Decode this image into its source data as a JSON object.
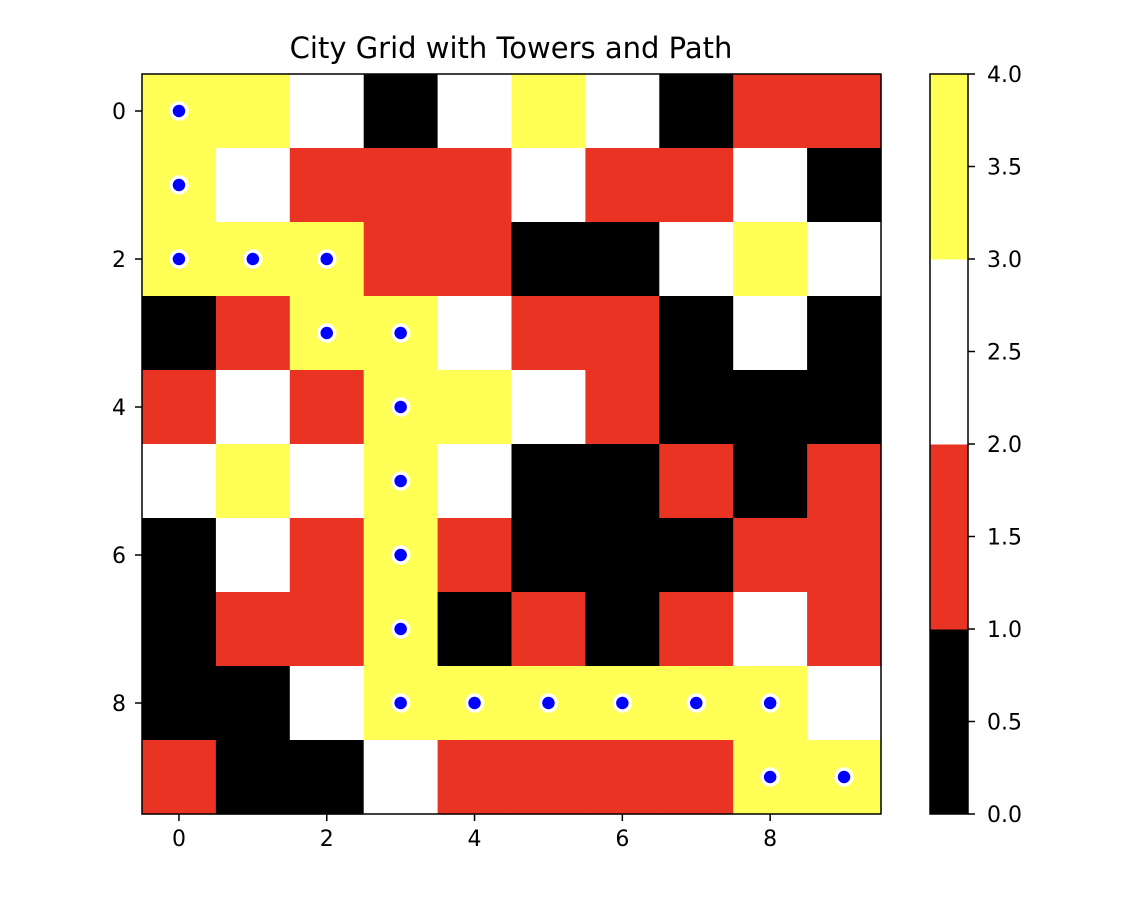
{
  "chart_data": {
    "type": "heatmap",
    "title": "City Grid with Towers and Path",
    "xlabel": "",
    "ylabel": "",
    "grid": false,
    "x_ticks": [
      "0",
      "2",
      "4",
      "6",
      "8"
    ],
    "y_ticks": [
      "0",
      "2",
      "4",
      "6",
      "8"
    ],
    "x_tick_values": [
      0,
      2,
      4,
      6,
      8
    ],
    "y_tick_values": [
      0,
      2,
      4,
      6,
      8
    ],
    "xlim": [
      -0.5,
      9.5
    ],
    "ylim": [
      9.5,
      -0.5
    ],
    "colormap": {
      "colors": [
        "#000000",
        "#e93323",
        "#ffffff",
        "#ffff55"
      ],
      "bounds": [
        0,
        1,
        2,
        3,
        4
      ]
    },
    "colorbar": {
      "ticks": [
        "0.0",
        "0.5",
        "1.0",
        "1.5",
        "2.0",
        "2.5",
        "3.0",
        "3.5",
        "4.0"
      ],
      "tick_values": [
        0,
        0.5,
        1,
        1.5,
        2,
        2.5,
        3,
        3.5,
        4
      ],
      "range": [
        0,
        4
      ]
    },
    "grid_values": [
      [
        3,
        3,
        2,
        0,
        2,
        3,
        2,
        0,
        1,
        1
      ],
      [
        3,
        2,
        1,
        1,
        1,
        2,
        1,
        1,
        2,
        0
      ],
      [
        3,
        3,
        3,
        1,
        1,
        0,
        0,
        2,
        3,
        2
      ],
      [
        0,
        1,
        3,
        3,
        2,
        1,
        1,
        0,
        2,
        0
      ],
      [
        1,
        2,
        1,
        3,
        3,
        2,
        1,
        0,
        0,
        0
      ],
      [
        2,
        3,
        2,
        3,
        2,
        0,
        0,
        1,
        0,
        1
      ],
      [
        0,
        2,
        1,
        3,
        1,
        0,
        0,
        0,
        1,
        1
      ],
      [
        0,
        1,
        1,
        3,
        0,
        1,
        0,
        1,
        2,
        1
      ],
      [
        0,
        0,
        2,
        3,
        3,
        3,
        3,
        3,
        3,
        2
      ],
      [
        1,
        0,
        0,
        2,
        1,
        1,
        1,
        1,
        3,
        3
      ]
    ],
    "path_points": [
      [
        0,
        0
      ],
      [
        0,
        1
      ],
      [
        0,
        2
      ],
      [
        1,
        2
      ],
      [
        2,
        2
      ],
      [
        2,
        3
      ],
      [
        3,
        3
      ],
      [
        3,
        4
      ],
      [
        3,
        5
      ],
      [
        3,
        6
      ],
      [
        3,
        7
      ],
      [
        3,
        8
      ],
      [
        4,
        8
      ],
      [
        5,
        8
      ],
      [
        6,
        8
      ],
      [
        7,
        8
      ],
      [
        8,
        8
      ],
      [
        8,
        9
      ],
      [
        9,
        9
      ]
    ],
    "path_marker": {
      "fill": "#0000ff",
      "edge": "#ffffff"
    }
  }
}
